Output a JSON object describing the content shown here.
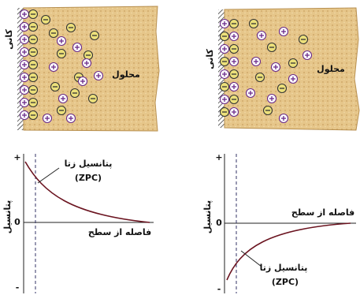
{
  "top_left": {
    "mineral": "کانی",
    "solution": "محلول"
  },
  "top_right": {
    "mineral": "کانی",
    "solution": "محلول"
  },
  "plot_left": {
    "y_plus": "+",
    "y_zero": "0",
    "y_minus": "-",
    "y_label": "پتانسیل",
    "zeta": "پتانسیل زتا",
    "zpc": "(ZPC)",
    "x_label": "فاصله از سطح"
  },
  "plot_right": {
    "y_plus": "+",
    "y_zero": "0",
    "y_minus": "-",
    "y_label": "پتانسیل",
    "zeta": "پتانسیل زتا",
    "zpc": "(ZPC)",
    "x_label": "فاصله از سطح"
  }
}
